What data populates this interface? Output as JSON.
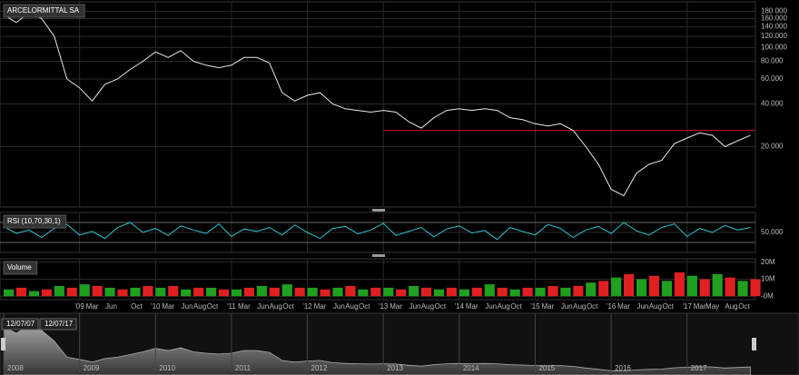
{
  "chart_data": [
    {
      "type": "line",
      "title": "ARCELORMITTAL SA",
      "color": "#e8e8e8",
      "log_scale": true,
      "x": [
        "2008-01",
        "2008-03",
        "2008-05",
        "2008-07",
        "2008-09",
        "2008-11",
        "2009-01",
        "2009-03",
        "2009-05",
        "2009-07",
        "2009-09",
        "2009-11",
        "2010-01",
        "2010-03",
        "2010-05",
        "2010-07",
        "2010-09",
        "2010-11",
        "2011-01",
        "2011-03",
        "2011-05",
        "2011-07",
        "2011-09",
        "2011-11",
        "2012-01",
        "2012-03",
        "2012-05",
        "2012-07",
        "2012-09",
        "2012-11",
        "2013-01",
        "2013-03",
        "2013-05",
        "2013-07",
        "2013-09",
        "2013-11",
        "2014-01",
        "2014-03",
        "2014-05",
        "2014-07",
        "2014-09",
        "2014-11",
        "2015-01",
        "2015-03",
        "2015-05",
        "2015-07",
        "2015-09",
        "2015-11",
        "2016-01",
        "2016-03",
        "2016-05",
        "2016-07",
        "2016-09",
        "2016-11",
        "2017-01",
        "2017-03",
        "2017-05",
        "2017-07",
        "2017-09",
        "2017-11"
      ],
      "values": [
        170,
        150,
        175,
        160,
        120,
        60,
        52,
        42,
        55,
        60,
        70,
        80,
        93,
        85,
        95,
        80,
        75,
        72,
        75,
        85,
        85,
        78,
        48,
        42,
        46,
        48,
        40,
        37,
        36,
        35,
        36,
        35,
        30,
        27,
        32,
        36,
        37,
        36,
        37,
        36,
        32,
        31,
        29,
        28,
        29,
        26,
        20,
        15,
        10,
        9,
        13,
        15,
        16,
        21,
        23,
        25,
        24,
        20,
        22,
        24
      ],
      "ylim": [
        7.5,
        210
      ],
      "yticks": [
        {
          "value": 20,
          "label": "20.000"
        },
        {
          "value": 40,
          "label": "40.000"
        },
        {
          "value": 60,
          "label": "60.000"
        },
        {
          "value": 80,
          "label": "80.000"
        },
        {
          "value": 100,
          "label": "100.000"
        },
        {
          "value": 120,
          "label": "120.000"
        },
        {
          "value": 140,
          "label": "140.000"
        },
        {
          "value": 160,
          "label": "160.000"
        },
        {
          "value": 180,
          "label": "180.000"
        }
      ],
      "reference_line": {
        "value": 26,
        "from": "2013-01",
        "color": "#c8102e"
      }
    },
    {
      "type": "line",
      "title": "RSI (10,70,30,1)",
      "color": "#2ec4d0",
      "x": [
        "2008-01",
        "2008-03",
        "2008-05",
        "2008-07",
        "2008-09",
        "2008-11",
        "2009-01",
        "2009-03",
        "2009-05",
        "2009-07",
        "2009-09",
        "2009-11",
        "2010-01",
        "2010-03",
        "2010-05",
        "2010-07",
        "2010-09",
        "2010-11",
        "2011-01",
        "2011-03",
        "2011-05",
        "2011-07",
        "2011-09",
        "2011-11",
        "2012-01",
        "2012-03",
        "2012-05",
        "2012-07",
        "2012-09",
        "2012-11",
        "2013-01",
        "2013-03",
        "2013-05",
        "2013-07",
        "2013-09",
        "2013-11",
        "2014-01",
        "2014-03",
        "2014-05",
        "2014-07",
        "2014-09",
        "2014-11",
        "2015-01",
        "2015-03",
        "2015-05",
        "2015-07",
        "2015-09",
        "2015-11",
        "2016-01",
        "2016-03",
        "2016-05",
        "2016-07",
        "2016-09",
        "2016-11",
        "2017-01",
        "2017-03",
        "2017-05",
        "2017-07",
        "2017-09",
        "2017-11"
      ],
      "values": [
        62,
        48,
        55,
        40,
        58,
        66,
        45,
        52,
        38,
        60,
        70,
        50,
        58,
        44,
        63,
        55,
        48,
        67,
        42,
        57,
        52,
        60,
        45,
        65,
        50,
        38,
        58,
        62,
        47,
        55,
        68,
        44,
        52,
        60,
        41,
        57,
        63,
        49,
        54,
        36,
        60,
        52,
        45,
        66,
        58,
        40,
        55,
        62,
        48,
        70,
        53,
        45,
        60,
        67,
        42,
        58,
        50,
        64,
        55,
        60
      ],
      "ylim": [
        10,
        90
      ],
      "yticks": [
        {
          "value": 50,
          "label": "50.000"
        }
      ],
      "bands": [
        30,
        70
      ]
    },
    {
      "type": "bar",
      "title": "Volume",
      "colors": [
        "#1fa01f",
        "#e02020"
      ],
      "x": [
        "2008-01",
        "2008-03",
        "2008-05",
        "2008-07",
        "2008-09",
        "2008-11",
        "2009-01",
        "2009-03",
        "2009-05",
        "2009-07",
        "2009-09",
        "2009-11",
        "2010-01",
        "2010-03",
        "2010-05",
        "2010-07",
        "2010-09",
        "2010-11",
        "2011-01",
        "2011-03",
        "2011-05",
        "2011-07",
        "2011-09",
        "2011-11",
        "2012-01",
        "2012-03",
        "2012-05",
        "2012-07",
        "2012-09",
        "2012-11",
        "2013-01",
        "2013-03",
        "2013-05",
        "2013-07",
        "2013-09",
        "2013-11",
        "2014-01",
        "2014-03",
        "2014-05",
        "2014-07",
        "2014-09",
        "2014-11",
        "2015-01",
        "2015-03",
        "2015-05",
        "2015-07",
        "2015-09",
        "2015-11",
        "2016-01",
        "2016-03",
        "2016-05",
        "2016-07",
        "2016-09",
        "2016-11",
        "2017-01",
        "2017-03",
        "2017-05",
        "2017-07",
        "2017-09",
        "2017-11"
      ],
      "values": [
        4,
        5,
        3,
        4,
        6,
        5,
        7,
        6,
        5,
        4,
        5,
        6,
        5,
        6,
        4,
        5,
        5,
        4,
        4,
        5,
        6,
        5,
        7,
        5,
        5,
        4,
        5,
        6,
        4,
        5,
        5,
        4,
        6,
        5,
        4,
        5,
        4,
        5,
        7,
        5,
        4,
        5,
        5,
        6,
        5,
        6,
        8,
        9,
        11,
        13,
        10,
        12,
        9,
        14,
        12,
        10,
        13,
        11,
        9,
        10
      ],
      "ylim": [
        -2,
        22
      ],
      "yticks": [
        {
          "value": 0,
          "label": "-0M"
        },
        {
          "value": 10,
          "label": "10M"
        },
        {
          "value": 20,
          "label": "20M"
        }
      ],
      "xticks": [
        {
          "value": "2009-01",
          "label": "'09"
        },
        {
          "value": "2009-03",
          "label": "Mar"
        },
        {
          "value": "2009-06",
          "label": "Jun"
        },
        {
          "value": "2009-10",
          "label": "Oct"
        },
        {
          "value": "2010-01",
          "label": "'10"
        },
        {
          "value": "2010-03",
          "label": "Mar"
        },
        {
          "value": "2010-06",
          "label": "Jun"
        },
        {
          "value": "2010-08",
          "label": "Aug"
        },
        {
          "value": "2010-10",
          "label": "Oct"
        },
        {
          "value": "2011-01",
          "label": "'11"
        },
        {
          "value": "2011-03",
          "label": "Mar"
        },
        {
          "value": "2011-06",
          "label": "Jun"
        },
        {
          "value": "2011-08",
          "label": "Aug"
        },
        {
          "value": "2011-10",
          "label": "Oct"
        },
        {
          "value": "2012-01",
          "label": "'12"
        },
        {
          "value": "2012-03",
          "label": "Mar"
        },
        {
          "value": "2012-06",
          "label": "Jun"
        },
        {
          "value": "2012-08",
          "label": "Aug"
        },
        {
          "value": "2012-10",
          "label": "Oct"
        },
        {
          "value": "2013-01",
          "label": "'13"
        },
        {
          "value": "2013-03",
          "label": "Mar"
        },
        {
          "value": "2013-06",
          "label": "Jun"
        },
        {
          "value": "2013-08",
          "label": "Aug"
        },
        {
          "value": "2013-10",
          "label": "Oct"
        },
        {
          "value": "2014-01",
          "label": "'14"
        },
        {
          "value": "2014-03",
          "label": "Mar"
        },
        {
          "value": "2014-06",
          "label": "Jun"
        },
        {
          "value": "2014-08",
          "label": "Aug"
        },
        {
          "value": "2014-10",
          "label": "Oct"
        },
        {
          "value": "2015-01",
          "label": "'15"
        },
        {
          "value": "2015-03",
          "label": "Mar"
        },
        {
          "value": "2015-06",
          "label": "Jun"
        },
        {
          "value": "2015-08",
          "label": "Aug"
        },
        {
          "value": "2015-10",
          "label": "Oct"
        },
        {
          "value": "2016-01",
          "label": "'16"
        },
        {
          "value": "2016-03",
          "label": "Mar"
        },
        {
          "value": "2016-06",
          "label": "Jun"
        },
        {
          "value": "2016-08",
          "label": "Aug"
        },
        {
          "value": "2016-10",
          "label": "Oct"
        },
        {
          "value": "2017-01",
          "label": "'17"
        },
        {
          "value": "2017-03",
          "label": "Mar"
        },
        {
          "value": "2017-05",
          "label": "May"
        },
        {
          "value": "2017-08",
          "label": "Aug"
        },
        {
          "value": "2017-10",
          "label": "Oct"
        }
      ]
    }
  ],
  "navigator": {
    "handles": [
      "12/07/07",
      "12/07/17"
    ],
    "years": [
      "2008",
      "2009",
      "2010",
      "2011",
      "2012",
      "2013",
      "2014",
      "2015",
      "2016",
      "2017"
    ]
  }
}
